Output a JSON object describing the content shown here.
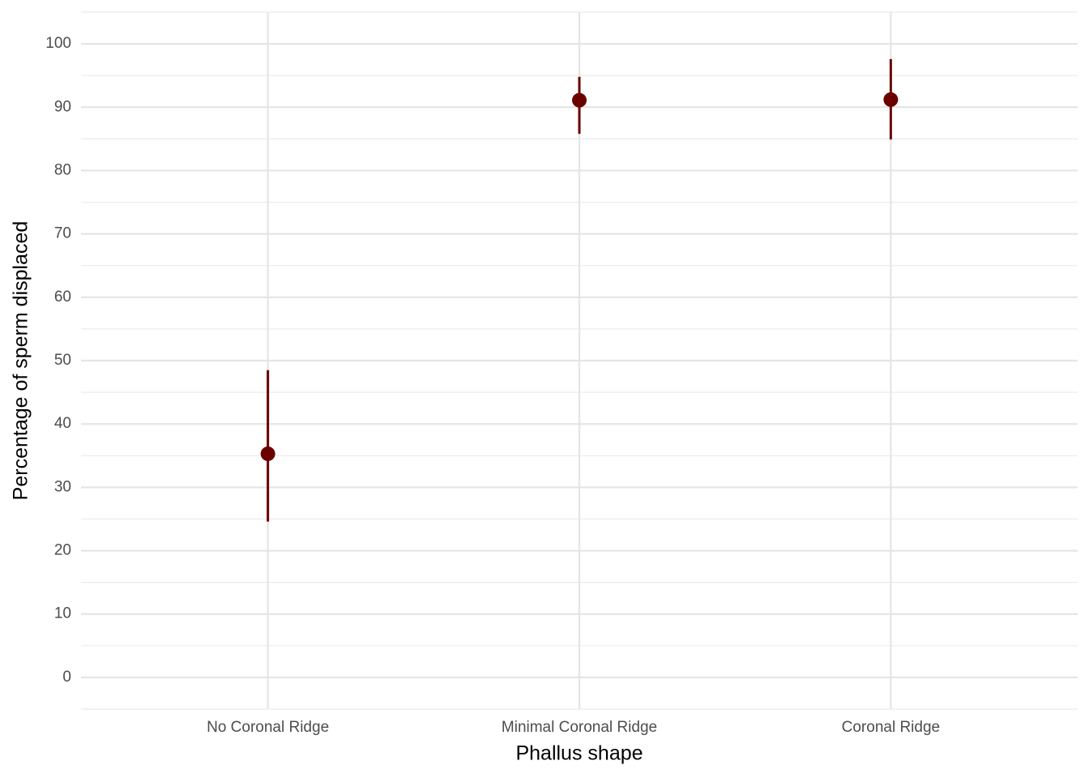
{
  "chart_data": {
    "type": "pointrange",
    "x_label": "Phallus shape",
    "y_label": "Percentage of sperm displaced",
    "categories": [
      "No Coronal Ridge",
      "Minimal Coronal Ridge",
      "Coronal Ridge"
    ],
    "values": [
      35.3,
      91.1,
      91.2
    ],
    "lower": [
      24.6,
      85.8,
      84.9
    ],
    "upper": [
      48.5,
      94.8,
      97.6
    ],
    "color": "#6b0000",
    "ylim": [
      -5,
      105
    ],
    "yticks": [
      0,
      10,
      20,
      30,
      40,
      50,
      60,
      70,
      80,
      90,
      100
    ],
    "y_minor_ticks": [
      -5,
      5,
      15,
      25,
      35,
      45,
      55,
      65,
      75,
      85,
      95,
      105
    ],
    "grid": true
  }
}
